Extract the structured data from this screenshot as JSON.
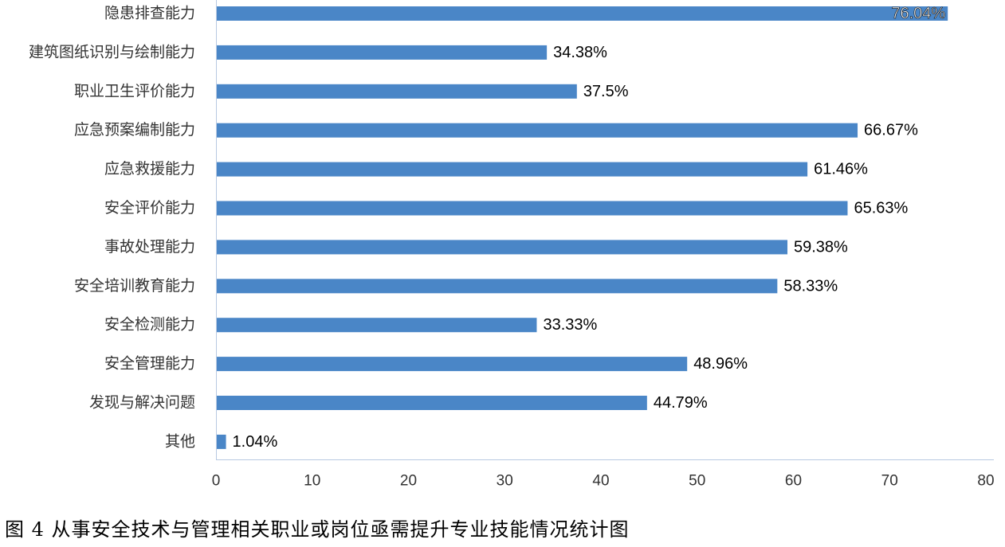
{
  "chart_data": {
    "type": "bar",
    "orientation": "horizontal",
    "categories": [
      "隐患排查能力",
      "建筑图纸识别与绘制能力",
      "职业卫生评价能力",
      "应急预案编制能力",
      "应急救援能力",
      "安全评价能力",
      "事故处理能力",
      "安全培训教育能力",
      "安全检测能力",
      "安全管理能力",
      "发现与解决问题",
      "其他"
    ],
    "values": [
      76.04,
      34.38,
      37.5,
      66.67,
      61.46,
      65.63,
      59.38,
      58.33,
      33.33,
      48.96,
      44.79,
      1.04
    ],
    "data_labels": [
      "76.04%",
      "34.38%",
      "37.5%",
      "66.67%",
      "61.46%",
      "65.63%",
      "59.38%",
      "58.33%",
      "33.33%",
      "48.96%",
      "44.79%",
      "1.04%"
    ],
    "xticks": [
      "0",
      "10",
      "20",
      "30",
      "40",
      "50",
      "60",
      "70",
      "80"
    ],
    "xlim": [
      0,
      80
    ],
    "title": "",
    "xlabel": "",
    "ylabel": "",
    "grid": false,
    "legend": "none",
    "bar_color": "#4a86c7",
    "axis_color": "#b7c9e2"
  },
  "caption": "图 4 从事安全技术与管理相关职业或岗位亟需提升专业技能情况统计图"
}
